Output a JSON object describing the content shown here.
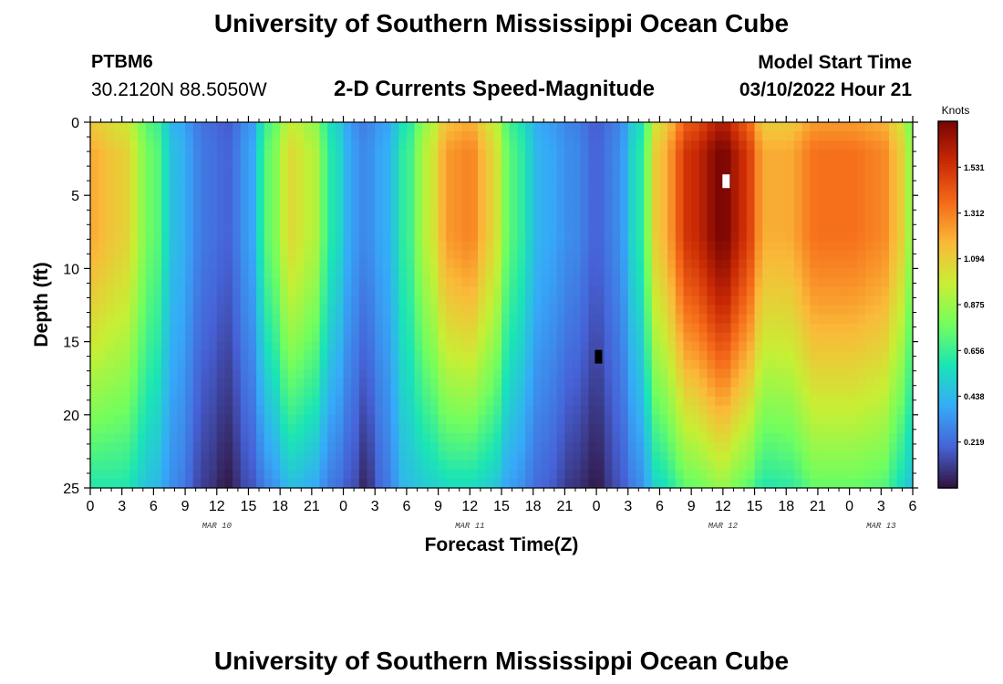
{
  "header": {
    "title": "University of Southern Mississippi Ocean Cube",
    "station_id": "PTBM6",
    "station_coords": "30.2120N  88.5050W",
    "subtitle": "2-D Currents Speed-Magnitude",
    "model_label": "Model Start Time",
    "model_date": "03/10/2022 Hour 21"
  },
  "footer": {
    "title": "University of Southern Mississippi Ocean Cube"
  },
  "colors": {
    "colormap": [
      "#30123b",
      "#4662d7",
      "#36aaf9",
      "#1ae4b6",
      "#72fe5e",
      "#c7ef34",
      "#faba39",
      "#f66b19",
      "#ca2a04",
      "#7a0403"
    ]
  },
  "chart_data": {
    "type": "heatmap",
    "title": "2-D Currents Speed-Magnitude",
    "xlabel": "Forecast Time(Z)",
    "ylabel": "Depth (ft)",
    "x_range_hours": [
      0,
      78
    ],
    "ylim": [
      0,
      25
    ],
    "y_ticks": [
      0,
      5,
      10,
      15,
      20,
      25
    ],
    "x_tick_labels": [
      "0",
      "3",
      "6",
      "9",
      "12",
      "15",
      "18",
      "21",
      "0",
      "3",
      "6",
      "9",
      "12",
      "15",
      "18",
      "21",
      "0",
      "3",
      "6",
      "9",
      "12",
      "15",
      "18",
      "21",
      "0",
      "3",
      "6"
    ],
    "date_labels": [
      {
        "label": "MAR 10",
        "hour": 12
      },
      {
        "label": "MAR 11",
        "hour": 36
      },
      {
        "label": "MAR 12",
        "hour": 60
      },
      {
        "label": "MAR 13",
        "hour": 75
      }
    ],
    "colorbar": {
      "title": "Knots",
      "min": 0,
      "max": 1.75,
      "tick_labels": [
        "1.531",
        "1.312",
        "1.094",
        "0.875",
        "0.656",
        "0.438",
        "0.219"
      ]
    },
    "markers": [
      {
        "name": "max-speed-marker",
        "hour": 60.3,
        "depth": 4,
        "color": "#ffffff"
      },
      {
        "name": "min-speed-marker",
        "hour": 48.2,
        "depth": 16,
        "color": "#000000"
      }
    ],
    "speed_profiles": [
      {
        "hour": 0,
        "surface": 1.2,
        "bottom": 0.6
      },
      {
        "hour": 3,
        "surface": 1.1,
        "bottom": 0.6
      },
      {
        "hour": 6,
        "surface": 0.75,
        "bottom": 0.45
      },
      {
        "hour": 8,
        "surface": 0.45,
        "bottom": 0.3
      },
      {
        "hour": 11,
        "surface": 0.25,
        "bottom": 0.1
      },
      {
        "hour": 13,
        "surface": 0.2,
        "bottom": 0.02
      },
      {
        "hour": 15,
        "surface": 0.35,
        "bottom": 0.15
      },
      {
        "hour": 17,
        "surface": 0.75,
        "bottom": 0.3
      },
      {
        "hour": 19,
        "surface": 1.05,
        "bottom": 0.45
      },
      {
        "hour": 21,
        "surface": 0.95,
        "bottom": 0.4
      },
      {
        "hour": 23,
        "surface": 0.6,
        "bottom": 0.25
      },
      {
        "hour": 25,
        "surface": 0.35,
        "bottom": 0.15
      },
      {
        "hour": 26,
        "surface": 0.3,
        "bottom": 0.05
      },
      {
        "hour": 28,
        "surface": 0.4,
        "bottom": 0.25
      },
      {
        "hour": 30,
        "surface": 0.65,
        "bottom": 0.45
      },
      {
        "hour": 32,
        "surface": 0.95,
        "bottom": 0.5
      },
      {
        "hour": 34,
        "surface": 1.25,
        "bottom": 0.55
      },
      {
        "hour": 36,
        "surface": 1.3,
        "bottom": 0.55
      },
      {
        "hour": 38,
        "surface": 1.1,
        "bottom": 0.5
      },
      {
        "hour": 40,
        "surface": 0.7,
        "bottom": 0.35
      },
      {
        "hour": 43,
        "surface": 0.4,
        "bottom": 0.2
      },
      {
        "hour": 46,
        "surface": 0.3,
        "bottom": 0.08
      },
      {
        "hour": 48,
        "surface": 0.2,
        "bottom": 0.02
      },
      {
        "hour": 50,
        "surface": 0.3,
        "bottom": 0.15
      },
      {
        "hour": 52,
        "surface": 0.6,
        "bottom": 0.3
      },
      {
        "hour": 54,
        "surface": 1.15,
        "bottom": 0.55
      },
      {
        "hour": 57,
        "surface": 1.55,
        "bottom": 0.75
      },
      {
        "hour": 60,
        "surface": 1.75,
        "bottom": 0.85
      },
      {
        "hour": 62,
        "surface": 1.55,
        "bottom": 0.75
      },
      {
        "hour": 64,
        "surface": 1.2,
        "bottom": 0.6
      },
      {
        "hour": 66,
        "surface": 1.2,
        "bottom": 0.62
      },
      {
        "hour": 69,
        "surface": 1.35,
        "bottom": 0.75
      },
      {
        "hour": 72,
        "surface": 1.35,
        "bottom": 0.75
      },
      {
        "hour": 75,
        "surface": 1.3,
        "bottom": 0.72
      },
      {
        "hour": 77,
        "surface": 1.1,
        "bottom": 0.55
      },
      {
        "hour": 78,
        "surface": 0.8,
        "bottom": 0.45
      }
    ]
  }
}
